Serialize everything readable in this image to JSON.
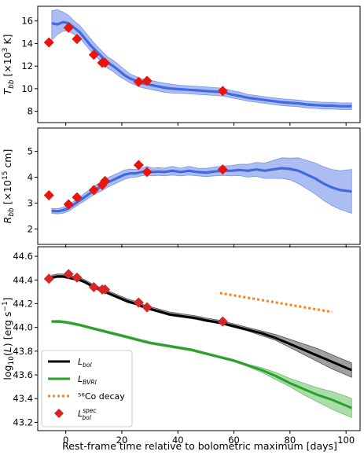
{
  "figure": {
    "xlabel": "Rest-frame time relative to bolometric maximum [days]"
  },
  "chart_data": [
    {
      "type": "line",
      "ylabel": "T_bb [×10³ K]",
      "xlim": [
        -10,
        105
      ],
      "ylim": [
        7.0,
        17.3
      ],
      "xticks": [
        0,
        20,
        40,
        60,
        80,
        100
      ],
      "yticks": [
        8,
        10,
        12,
        14,
        16
      ],
      "series": [
        {
          "kind": "band-line",
          "color": "#4169e1",
          "fill": "#8fa7ec",
          "x": [
            -5,
            -3,
            -1,
            1,
            3,
            5,
            7,
            9,
            11,
            13,
            15,
            17,
            19,
            21,
            23,
            25,
            27,
            29,
            31,
            33,
            35,
            38,
            41,
            44,
            47,
            50,
            53,
            56,
            59,
            62,
            65,
            68,
            71,
            74,
            77,
            80,
            83,
            86,
            89,
            92,
            95,
            98,
            102
          ],
          "y": [
            15.8,
            15.7,
            15.9,
            15.8,
            15.4,
            15.0,
            14.4,
            13.8,
            13.3,
            12.8,
            12.3,
            12.0,
            11.6,
            11.2,
            10.9,
            10.7,
            10.5,
            10.4,
            10.3,
            10.2,
            10.1,
            10.0,
            9.95,
            9.9,
            9.85,
            9.8,
            9.75,
            9.7,
            9.5,
            9.35,
            9.2,
            9.1,
            9.0,
            8.9,
            8.8,
            8.75,
            8.7,
            8.6,
            8.55,
            8.5,
            8.5,
            8.45,
            8.45
          ],
          "lower": [
            14.3,
            14.8,
            15.1,
            15.1,
            14.8,
            14.5,
            13.9,
            13.3,
            12.8,
            12.3,
            11.8,
            11.5,
            11.1,
            10.8,
            10.5,
            10.3,
            10.1,
            10.0,
            9.9,
            9.8,
            9.7,
            9.6,
            9.6,
            9.55,
            9.5,
            9.45,
            9.4,
            9.35,
            9.2,
            9.05,
            8.9,
            8.8,
            8.7,
            8.6,
            8.5,
            8.45,
            8.4,
            8.3,
            8.25,
            8.2,
            8.2,
            8.15,
            8.15
          ],
          "upper": [
            16.9,
            17.0,
            16.8,
            16.5,
            16.0,
            15.6,
            15.0,
            14.4,
            13.8,
            13.3,
            12.8,
            12.5,
            12.1,
            11.7,
            11.3,
            11.1,
            10.9,
            10.8,
            10.7,
            10.6,
            10.5,
            10.4,
            10.3,
            10.25,
            10.2,
            10.15,
            10.1,
            10.05,
            9.85,
            9.7,
            9.5,
            9.4,
            9.3,
            9.2,
            9.1,
            9.05,
            9.0,
            8.9,
            8.85,
            8.8,
            8.8,
            8.75,
            8.75
          ]
        },
        {
          "kind": "markers",
          "color": "#e8150c",
          "x": [
            -6,
            1,
            4,
            10,
            13,
            14,
            26,
            29,
            56
          ],
          "y": [
            14.1,
            15.4,
            14.4,
            13.0,
            12.3,
            12.3,
            10.6,
            10.7,
            9.8
          ]
        }
      ]
    },
    {
      "type": "line",
      "ylabel": "R_bb [×10¹⁵ cm]",
      "xlim": [
        -10,
        105
      ],
      "ylim": [
        1.4,
        5.9
      ],
      "xticks": [
        0,
        20,
        40,
        60,
        80,
        100
      ],
      "yticks": [
        2,
        3,
        4,
        5
      ],
      "series": [
        {
          "kind": "band-line",
          "color": "#4169e1",
          "fill": "#8fa7ec",
          "x": [
            -5,
            -3,
            -1,
            1,
            3,
            5,
            7,
            9,
            11,
            13,
            15,
            17,
            19,
            21,
            23,
            25,
            27,
            29,
            31,
            33,
            35,
            38,
            41,
            44,
            47,
            50,
            53,
            56,
            59,
            62,
            65,
            68,
            71,
            74,
            77,
            80,
            83,
            86,
            89,
            92,
            95,
            98,
            102
          ],
          "y": [
            2.7,
            2.68,
            2.72,
            2.8,
            2.95,
            3.1,
            3.25,
            3.4,
            3.55,
            3.65,
            3.8,
            3.9,
            4.0,
            4.1,
            4.15,
            4.15,
            4.2,
            4.25,
            4.2,
            4.22,
            4.2,
            4.25,
            4.2,
            4.25,
            4.2,
            4.18,
            4.22,
            4.25,
            4.25,
            4.28,
            4.25,
            4.3,
            4.25,
            4.3,
            4.35,
            4.32,
            4.25,
            4.1,
            3.95,
            3.75,
            3.6,
            3.5,
            3.45
          ],
          "lower": [
            2.6,
            2.58,
            2.6,
            2.68,
            2.82,
            2.97,
            3.1,
            3.25,
            3.38,
            3.48,
            3.62,
            3.72,
            3.82,
            3.92,
            3.98,
            4.0,
            4.05,
            4.08,
            4.05,
            4.07,
            4.05,
            4.08,
            4.05,
            4.08,
            4.05,
            4.02,
            4.05,
            4.07,
            4.05,
            4.06,
            4.0,
            4.03,
            3.95,
            3.95,
            3.95,
            3.9,
            3.75,
            3.55,
            3.35,
            3.1,
            2.9,
            2.75,
            2.6
          ],
          "upper": [
            2.8,
            2.78,
            2.84,
            2.92,
            3.08,
            3.23,
            3.4,
            3.55,
            3.72,
            3.83,
            3.98,
            4.08,
            4.18,
            4.28,
            4.32,
            4.3,
            4.35,
            4.42,
            4.35,
            4.37,
            4.35,
            4.42,
            4.35,
            4.42,
            4.35,
            4.34,
            4.39,
            4.43,
            4.45,
            4.5,
            4.5,
            4.57,
            4.55,
            4.65,
            4.75,
            4.74,
            4.75,
            4.65,
            4.55,
            4.4,
            4.3,
            4.25,
            4.3
          ]
        },
        {
          "kind": "markers",
          "color": "#e8150c",
          "x": [
            -6,
            1,
            4,
            10,
            13,
            14,
            26,
            29,
            56
          ],
          "y": [
            3.3,
            2.95,
            3.22,
            3.5,
            3.7,
            3.85,
            4.47,
            4.2,
            4.3
          ]
        }
      ]
    },
    {
      "type": "line",
      "ylabel": "log₁₀(L) [erg s⁻¹]",
      "xlim": [
        -10,
        105
      ],
      "ylim": [
        43.13,
        44.68
      ],
      "xticks": [
        0,
        20,
        40,
        60,
        80,
        100
      ],
      "yticks": [
        43.2,
        43.4,
        43.6,
        43.8,
        44.0,
        44.2,
        44.4,
        44.6
      ],
      "legend_position": "lower-left",
      "series": [
        {
          "name": "L_bol",
          "legend_label": "L",
          "legend_sub": "bol",
          "kind": "band-line",
          "color": "#000000",
          "fill": "#808080",
          "x": [
            -5,
            -3,
            -1,
            1,
            3,
            5,
            7,
            10,
            13,
            16,
            19,
            22,
            25,
            28,
            31,
            34,
            37,
            40,
            43,
            46,
            50,
            55,
            60,
            65,
            70,
            75,
            80,
            85,
            90,
            95,
            100,
            102
          ],
          "y": [
            44.42,
            44.43,
            44.43,
            44.42,
            44.41,
            44.4,
            44.38,
            44.34,
            44.31,
            44.28,
            44.25,
            44.22,
            44.2,
            44.17,
            44.15,
            44.13,
            44.11,
            44.1,
            44.09,
            44.08,
            44.06,
            44.04,
            44.01,
            43.98,
            43.95,
            43.91,
            43.86,
            43.81,
            43.76,
            43.71,
            43.66,
            43.64
          ],
          "lower": [
            44.41,
            44.42,
            44.42,
            44.41,
            44.4,
            44.39,
            44.37,
            44.33,
            44.3,
            44.27,
            44.24,
            44.21,
            44.19,
            44.16,
            44.14,
            44.12,
            44.1,
            44.09,
            44.08,
            44.07,
            44.05,
            44.03,
            44.0,
            43.97,
            43.93,
            43.89,
            43.83,
            43.77,
            43.71,
            43.65,
            43.6,
            43.58
          ],
          "upper": [
            44.44,
            44.45,
            44.45,
            44.44,
            44.43,
            44.42,
            44.4,
            44.36,
            44.33,
            44.3,
            44.27,
            44.24,
            44.22,
            44.19,
            44.17,
            44.15,
            44.13,
            44.12,
            44.11,
            44.1,
            44.08,
            44.06,
            44.03,
            44.0,
            43.97,
            43.94,
            43.9,
            43.86,
            43.82,
            43.77,
            43.72,
            43.7
          ]
        },
        {
          "name": "L_BVRI",
          "legend_label": "L",
          "legend_sub": "BVRI",
          "kind": "band-line",
          "color": "#2ca02c",
          "fill": "#8fd18f",
          "x": [
            -5,
            -2,
            1,
            5,
            10,
            15,
            20,
            25,
            30,
            35,
            40,
            45,
            50,
            55,
            60,
            65,
            70,
            75,
            80,
            85,
            90,
            95,
            100,
            102
          ],
          "y": [
            44.05,
            44.05,
            44.04,
            44.02,
            43.99,
            43.96,
            43.93,
            43.9,
            43.87,
            43.85,
            43.83,
            43.81,
            43.78,
            43.75,
            43.72,
            43.68,
            43.64,
            43.59,
            43.53,
            43.48,
            43.43,
            43.39,
            43.34,
            43.32
          ],
          "lower": [
            44.04,
            44.04,
            44.03,
            44.01,
            43.98,
            43.95,
            43.92,
            43.89,
            43.86,
            43.84,
            43.82,
            43.8,
            43.77,
            43.74,
            43.71,
            43.67,
            43.62,
            43.56,
            43.5,
            43.43,
            43.37,
            43.31,
            43.26,
            43.24
          ],
          "upper": [
            44.06,
            44.06,
            44.05,
            44.03,
            44.0,
            43.97,
            43.94,
            43.91,
            43.88,
            43.86,
            43.84,
            43.82,
            43.79,
            43.76,
            43.73,
            43.69,
            43.66,
            43.62,
            43.57,
            43.53,
            43.49,
            43.46,
            43.42,
            43.4
          ]
        },
        {
          "name": "56Co decay",
          "legend_label": "⁵⁶Co decay",
          "kind": "dotted-line",
          "color": "#ff7f0e",
          "x": [
            55,
            95
          ],
          "y": [
            44.29,
            44.13
          ]
        },
        {
          "name": "L_bol^spec",
          "legend_label": "L",
          "legend_sub": "bol",
          "legend_sup": "spec",
          "kind": "markers",
          "color": "#d62728",
          "x": [
            -6,
            1,
            4,
            10,
            13,
            14,
            26,
            29,
            56
          ],
          "y": [
            44.41,
            44.45,
            44.42,
            44.34,
            44.32,
            44.32,
            44.21,
            44.17,
            44.05
          ]
        }
      ]
    }
  ]
}
